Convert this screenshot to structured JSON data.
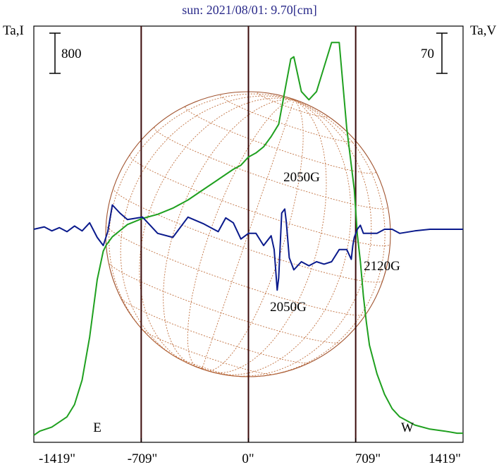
{
  "chart_data": {
    "type": "line",
    "title": "sun: 2021/08/01: 9.70[cm]",
    "left_axis_label": "Ta,I",
    "right_axis_label": "Ta,V",
    "left_scale_bar_label": "800",
    "right_scale_bar_label": "70",
    "x_unit": "arcsec",
    "x_range": [
      -1419,
      1419
    ],
    "x_ticks": [
      {
        "value": -1419,
        "label": "-1419\""
      },
      {
        "value": -709,
        "label": "-709\""
      },
      {
        "value": 0,
        "label": "0\""
      },
      {
        "value": 709,
        "label": "709\""
      },
      {
        "value": 1419,
        "label": "1419\""
      }
    ],
    "limb_markers": [
      {
        "x": -709,
        "label": "E"
      },
      {
        "x": 709,
        "label": "W"
      }
    ],
    "annotations": [
      {
        "text": "2050G",
        "x": 260,
        "y": 250
      },
      {
        "text": "2050G",
        "x": 200,
        "y": 434
      },
      {
        "text": "2120G",
        "x": 660,
        "y": 376
      }
    ],
    "series": [
      {
        "color": "#1fa01f",
        "x": [
          -1419,
          -1380,
          -1300,
          -1200,
          -1150,
          -1100,
          -1050,
          -1000,
          -960,
          -940,
          -920,
          -900,
          -850,
          -800,
          -700,
          -600,
          -500,
          -400,
          -300,
          -200,
          -100,
          -50,
          0,
          50,
          100,
          150,
          200,
          250,
          280,
          300,
          350,
          400,
          450,
          500,
          550,
          600,
          650,
          700,
          720,
          740,
          760,
          780,
          800,
          850,
          900,
          950,
          1000,
          1100,
          1200,
          1300,
          1380,
          1419
        ],
        "y": [
          0.0,
          0.02,
          0.04,
          0.09,
          0.15,
          0.27,
          0.48,
          0.76,
          0.9,
          0.93,
          0.95,
          0.97,
          1.0,
          1.03,
          1.06,
          1.08,
          1.11,
          1.15,
          1.2,
          1.25,
          1.3,
          1.32,
          1.36,
          1.38,
          1.41,
          1.46,
          1.52,
          1.72,
          1.84,
          1.85,
          1.68,
          1.64,
          1.68,
          1.8,
          1.92,
          1.92,
          1.5,
          1.2,
          0.98,
          0.85,
          0.68,
          0.55,
          0.44,
          0.3,
          0.2,
          0.13,
          0.09,
          0.05,
          0.03,
          0.02,
          0.01,
          0.01
        ]
      },
      {
        "color": "#0a1a8c",
        "x": [
          -1419,
          -1350,
          -1300,
          -1250,
          -1200,
          -1150,
          -1100,
          -1050,
          -1000,
          -960,
          -930,
          -900,
          -850,
          -800,
          -700,
          -600,
          -500,
          -400,
          -300,
          -200,
          -150,
          -100,
          -50,
          0,
          50,
          100,
          150,
          170,
          190,
          200,
          220,
          240,
          250,
          270,
          300,
          350,
          400,
          450,
          500,
          550,
          600,
          650,
          680,
          690,
          700,
          720,
          740,
          760,
          800,
          850,
          900,
          950,
          1000,
          1100,
          1200,
          1300,
          1350,
          1419
        ],
        "y": [
          0,
          3,
          -2,
          2,
          -3,
          4,
          -2,
          8,
          -10,
          -20,
          -3,
          30,
          20,
          12,
          15,
          -5,
          -10,
          15,
          7,
          -3,
          14,
          8,
          -12,
          -5,
          -5,
          -20,
          -8,
          -25,
          -75,
          -60,
          20,
          25,
          10,
          -35,
          -50,
          -40,
          -45,
          -40,
          -43,
          -40,
          -25,
          -25,
          -37,
          -20,
          -10,
          0,
          5,
          -5,
          -5,
          -5,
          0,
          0,
          -5,
          -2,
          0,
          0,
          0,
          0
        ]
      }
    ]
  }
}
